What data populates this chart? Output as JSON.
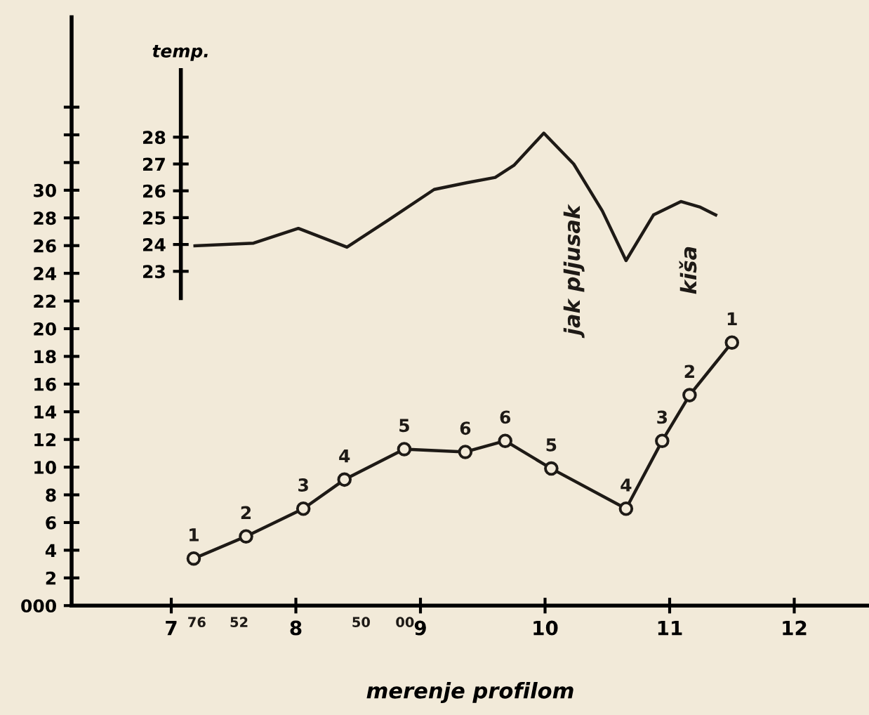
{
  "chart_data": {
    "type": "line",
    "xlabel": "merenje profilom",
    "y2label": "temp.",
    "xlim": [
      6.2,
      12.6
    ],
    "xticks": [
      7,
      8,
      9,
      10,
      11,
      12
    ],
    "ylim": [
      0,
      42.5
    ],
    "yticks": [
      {
        "value": 0,
        "label": "000"
      },
      2,
      4,
      6,
      8,
      10,
      12,
      14,
      16,
      18,
      20,
      22,
      24,
      26,
      28,
      30,
      {
        "value": 32,
        "label": null
      },
      {
        "value": 34,
        "label": null
      },
      {
        "value": 36,
        "label": null
      }
    ],
    "y2lim": [
      22.0,
      30.5
    ],
    "y2ticks": [
      23,
      24,
      25,
      26,
      27,
      28
    ],
    "marker": "circle",
    "line_style": "solid",
    "legend": false,
    "grid": false,
    "series": [
      {
        "color": "#1e1a16",
        "x": [
          7.18,
          7.6,
          8.06,
          8.39,
          8.87,
          9.36,
          9.68,
          10.05,
          10.65,
          10.94,
          11.16,
          11.5
        ],
        "values": [
          3.4,
          5.0,
          7.0,
          9.1,
          11.3,
          11.1,
          11.9,
          9.9,
          7.0,
          11.9,
          15.2,
          19.0
        ]
      },
      {
        "color": "#1e1a16",
        "axis": "y2",
        "marker": "none",
        "x": [
          7.19,
          7.66,
          8.02,
          8.41,
          8.74,
          9.11,
          9.37,
          9.6,
          9.75,
          9.99,
          10.23,
          10.46,
          10.65,
          10.87,
          11.09,
          11.24,
          11.37
        ],
        "values": [
          23.95,
          24.05,
          24.6,
          23.9,
          24.9,
          26.05,
          26.3,
          26.5,
          26.95,
          28.15,
          27.0,
          25.25,
          23.4,
          25.1,
          25.6,
          25.4,
          25.1
        ]
      }
    ],
    "annotations": [
      {
        "text": "1",
        "x": 7.18,
        "y": 3.4
      },
      {
        "text": "2",
        "x": 7.6,
        "y": 5.0
      },
      {
        "text": "3",
        "x": 8.06,
        "y": 7.0
      },
      {
        "text": "4",
        "x": 8.39,
        "y": 9.1
      },
      {
        "text": "5",
        "x": 8.87,
        "y": 11.3
      },
      {
        "text": "6",
        "x": 9.36,
        "y": 11.1
      },
      {
        "text": "6",
        "x": 9.68,
        "y": 11.9
      },
      {
        "text": "5",
        "x": 10.05,
        "y": 9.9
      },
      {
        "text": "4",
        "x": 10.65,
        "y": 7.0
      },
      {
        "text": "3",
        "x": 10.94,
        "y": 11.9
      },
      {
        "text": "2",
        "x": 11.16,
        "y": 15.2
      },
      {
        "text": "1",
        "x": 11.5,
        "y": 19.0
      },
      "jak pljusak",
      "kiša",
      "76",
      "52",
      "50",
      "00"
    ]
  }
}
